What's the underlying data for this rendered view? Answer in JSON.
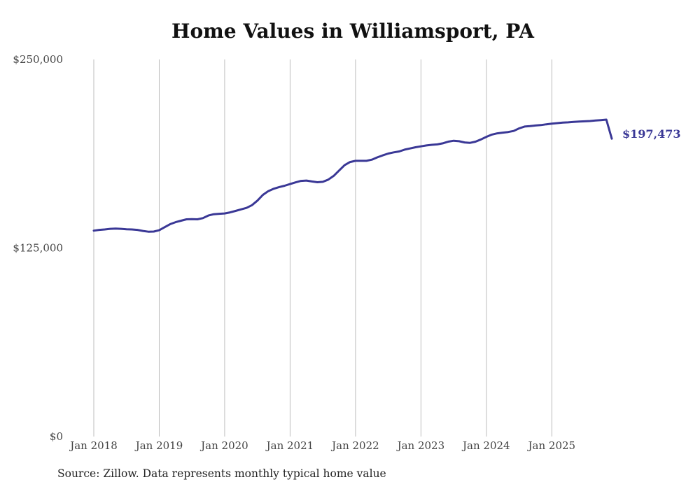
{
  "chart_data": {
    "type": "line",
    "title": "Home Values in Williamsport, PA",
    "source": "Source: Zillow. Data represents monthly typical home value",
    "ylim": [
      0,
      250000
    ],
    "y_ticks": [
      {
        "value": 0,
        "label": "$0"
      },
      {
        "value": 125000,
        "label": "$125,000"
      },
      {
        "value": 250000,
        "label": "$250,000"
      }
    ],
    "x_range_months": [
      0,
      95
    ],
    "x_ticks": [
      {
        "month_index": 0,
        "label": "Jan 2018"
      },
      {
        "month_index": 12,
        "label": "Jan 2019"
      },
      {
        "month_index": 24,
        "label": "Jan 2020"
      },
      {
        "month_index": 36,
        "label": "Jan 2021"
      },
      {
        "month_index": 48,
        "label": "Jan 2022"
      },
      {
        "month_index": 60,
        "label": "Jan 2023"
      },
      {
        "month_index": 72,
        "label": "Jan 2024"
      },
      {
        "month_index": 84,
        "label": "Jan 2025"
      }
    ],
    "grid": "vertical",
    "series": [
      {
        "name": "Typical home value",
        "color": "#3a3896",
        "end_label": "$197,473",
        "values": [
          136500,
          137000,
          137300,
          137700,
          137900,
          137700,
          137400,
          137300,
          137000,
          136300,
          135800,
          135900,
          136800,
          138800,
          140800,
          142100,
          143100,
          144000,
          144100,
          144000,
          144800,
          146500,
          147400,
          147700,
          147900,
          148600,
          149600,
          150600,
          151600,
          153400,
          156400,
          160200,
          162700,
          164300,
          165400,
          166300,
          167400,
          168500,
          169500,
          169700,
          169100,
          168600,
          168900,
          170300,
          172800,
          176400,
          179900,
          182000,
          182800,
          182800,
          182800,
          183600,
          185100,
          186400,
          187600,
          188400,
          189000,
          190200,
          191000,
          191800,
          192400,
          193000,
          193400,
          193700,
          194400,
          195500,
          196100,
          195800,
          195000,
          194700,
          195500,
          197000,
          198700,
          200200,
          201000,
          201500,
          201900,
          202600,
          204300,
          205500,
          205800,
          206200,
          206500,
          207000,
          207400,
          207800,
          208100,
          208300,
          208600,
          208800,
          209000,
          209200,
          209500,
          209800,
          210100,
          197473
        ]
      }
    ]
  }
}
